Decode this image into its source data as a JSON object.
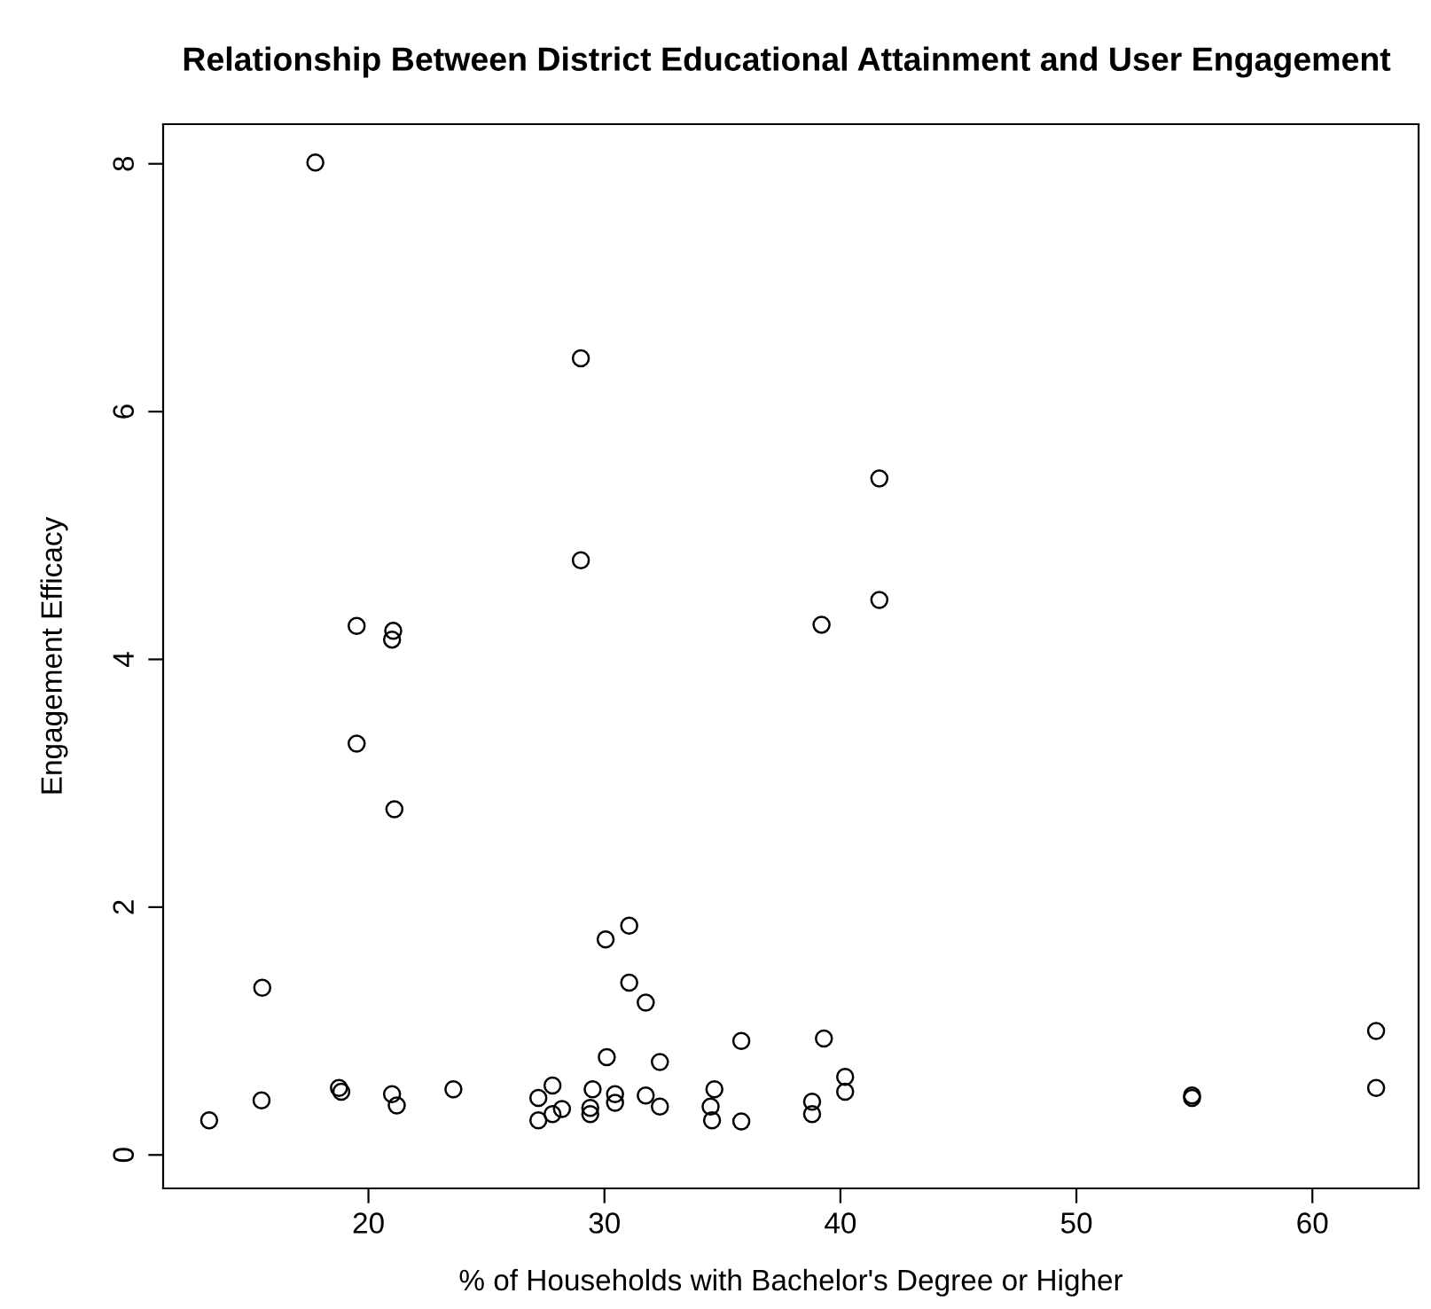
{
  "chart_data": {
    "type": "scatter",
    "title": "Relationship Between District Educational Attainment and User Engagement",
    "xlabel": "% of Households with Bachelor's Degree or Higher",
    "ylabel": "Engagement Efficacy",
    "marker": "circle",
    "grid": false,
    "legend": false,
    "xlim": [
      11.3,
      64.5
    ],
    "ylim": [
      -0.27,
      8.32
    ],
    "xticks": [
      20,
      30,
      40,
      50,
      60
    ],
    "yticks": [
      0,
      2,
      4,
      6,
      8
    ],
    "series": [
      {
        "color": "#000000",
        "x": [
          13.25,
          15.47,
          15.5,
          18.75,
          18.85,
          21.0,
          21.2,
          23.6,
          27.2,
          27.2,
          27.8,
          27.8,
          28.2,
          29.5,
          29.4,
          29.4,
          30.1,
          30.45,
          30.45,
          31.75,
          31.75,
          32.35,
          32.35,
          34.66,
          34.5,
          34.56,
          35.8,
          35.8,
          39.3,
          38.8,
          38.8,
          40.2,
          40.2,
          54.9,
          54.9,
          62.7,
          62.7,
          19.5,
          21.1,
          31.05,
          30.05,
          31.05,
          17.75,
          29.0,
          29.0,
          19.5,
          21.05,
          21.0,
          39.2,
          41.65,
          41.65
        ],
        "values": [
          0.28,
          0.44,
          1.35,
          0.54,
          0.51,
          0.49,
          0.4,
          0.53,
          0.46,
          0.28,
          0.56,
          0.33,
          0.37,
          0.53,
          0.38,
          0.33,
          0.79,
          0.49,
          0.42,
          1.23,
          0.48,
          0.75,
          0.39,
          0.53,
          0.39,
          0.28,
          0.92,
          0.27,
          0.94,
          0.43,
          0.33,
          0.63,
          0.51,
          0.48,
          0.46,
          1.0,
          0.54,
          3.32,
          2.79,
          1.85,
          1.74,
          1.39,
          8.01,
          6.43,
          4.8,
          4.27,
          4.23,
          4.16,
          4.28,
          4.48,
          5.46
        ]
      }
    ]
  }
}
